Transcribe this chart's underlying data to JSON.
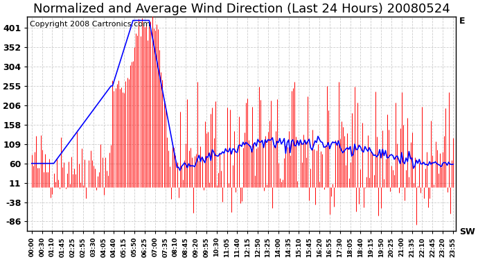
{
  "title": "Normalized and Average Wind Direction (Last 24 Hours) 20080524",
  "copyright": "Copyright 2008 Cartronics.com",
  "yticks": [
    401,
    352,
    304,
    255,
    206,
    158,
    109,
    60,
    11,
    -38,
    -86
  ],
  "ytick_labels": [
    "401",
    "352",
    "304",
    "255",
    "206",
    "158",
    "109",
    "60",
    "11",
    "-38",
    "-86"
  ],
  "y_extra_label_top": "E",
  "y_extra_label_bottom": "SW",
  "ylim": [
    -110,
    430
  ],
  "background_color": "#ffffff",
  "plot_bg_color": "#ffffff",
  "grid_color": "#cccccc",
  "red_color": "#ff0000",
  "blue_color": "#0000ff",
  "title_fontsize": 13,
  "copyright_fontsize": 8,
  "tick_fontsize": 9,
  "xtick_labels": [
    "00:00",
    "00:30",
    "01:10",
    "01:45",
    "02:25",
    "02:55",
    "03:30",
    "04:05",
    "04:40",
    "05:15",
    "05:50",
    "06:25",
    "07:00",
    "07:35",
    "08:10",
    "08:45",
    "09:20",
    "09:55",
    "10:30",
    "11:05",
    "11:40",
    "12:15",
    "12:50",
    "13:25",
    "14:00",
    "14:35",
    "15:10",
    "15:45",
    "16:20",
    "16:55",
    "17:30",
    "18:05",
    "18:40",
    "19:15",
    "19:50",
    "20:25",
    "21:00",
    "21:35",
    "22:10",
    "22:45",
    "23:20",
    "23:55"
  ]
}
